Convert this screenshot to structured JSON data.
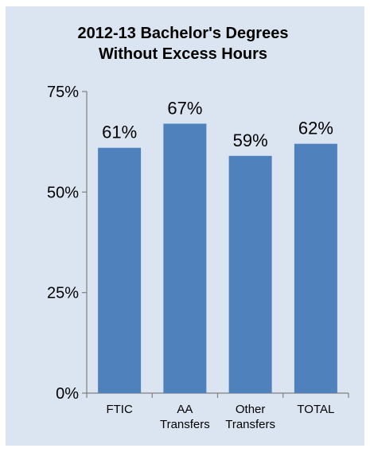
{
  "chart_data": {
    "type": "bar",
    "title_lines": [
      "2012-13 Bachelor's Degrees",
      "Without Excess Hours"
    ],
    "categories": [
      [
        "FTIC"
      ],
      [
        "AA",
        "Transfers"
      ],
      [
        "Other",
        "Transfers"
      ],
      [
        "TOTAL"
      ]
    ],
    "values": [
      61,
      67,
      59,
      62
    ],
    "data_labels": [
      "61%",
      "67%",
      "59%",
      "62%"
    ],
    "yticks": [
      {
        "value": 0,
        "label": "0%"
      },
      {
        "value": 25,
        "label": "25%"
      },
      {
        "value": 50,
        "label": "50%"
      },
      {
        "value": 75,
        "label": "75%"
      }
    ],
    "ylim": [
      0,
      75
    ],
    "grid": false,
    "legend": "none",
    "colors": {
      "bar": "#4f81bd",
      "background": "#dbe5f1",
      "axis": "#808080"
    }
  }
}
